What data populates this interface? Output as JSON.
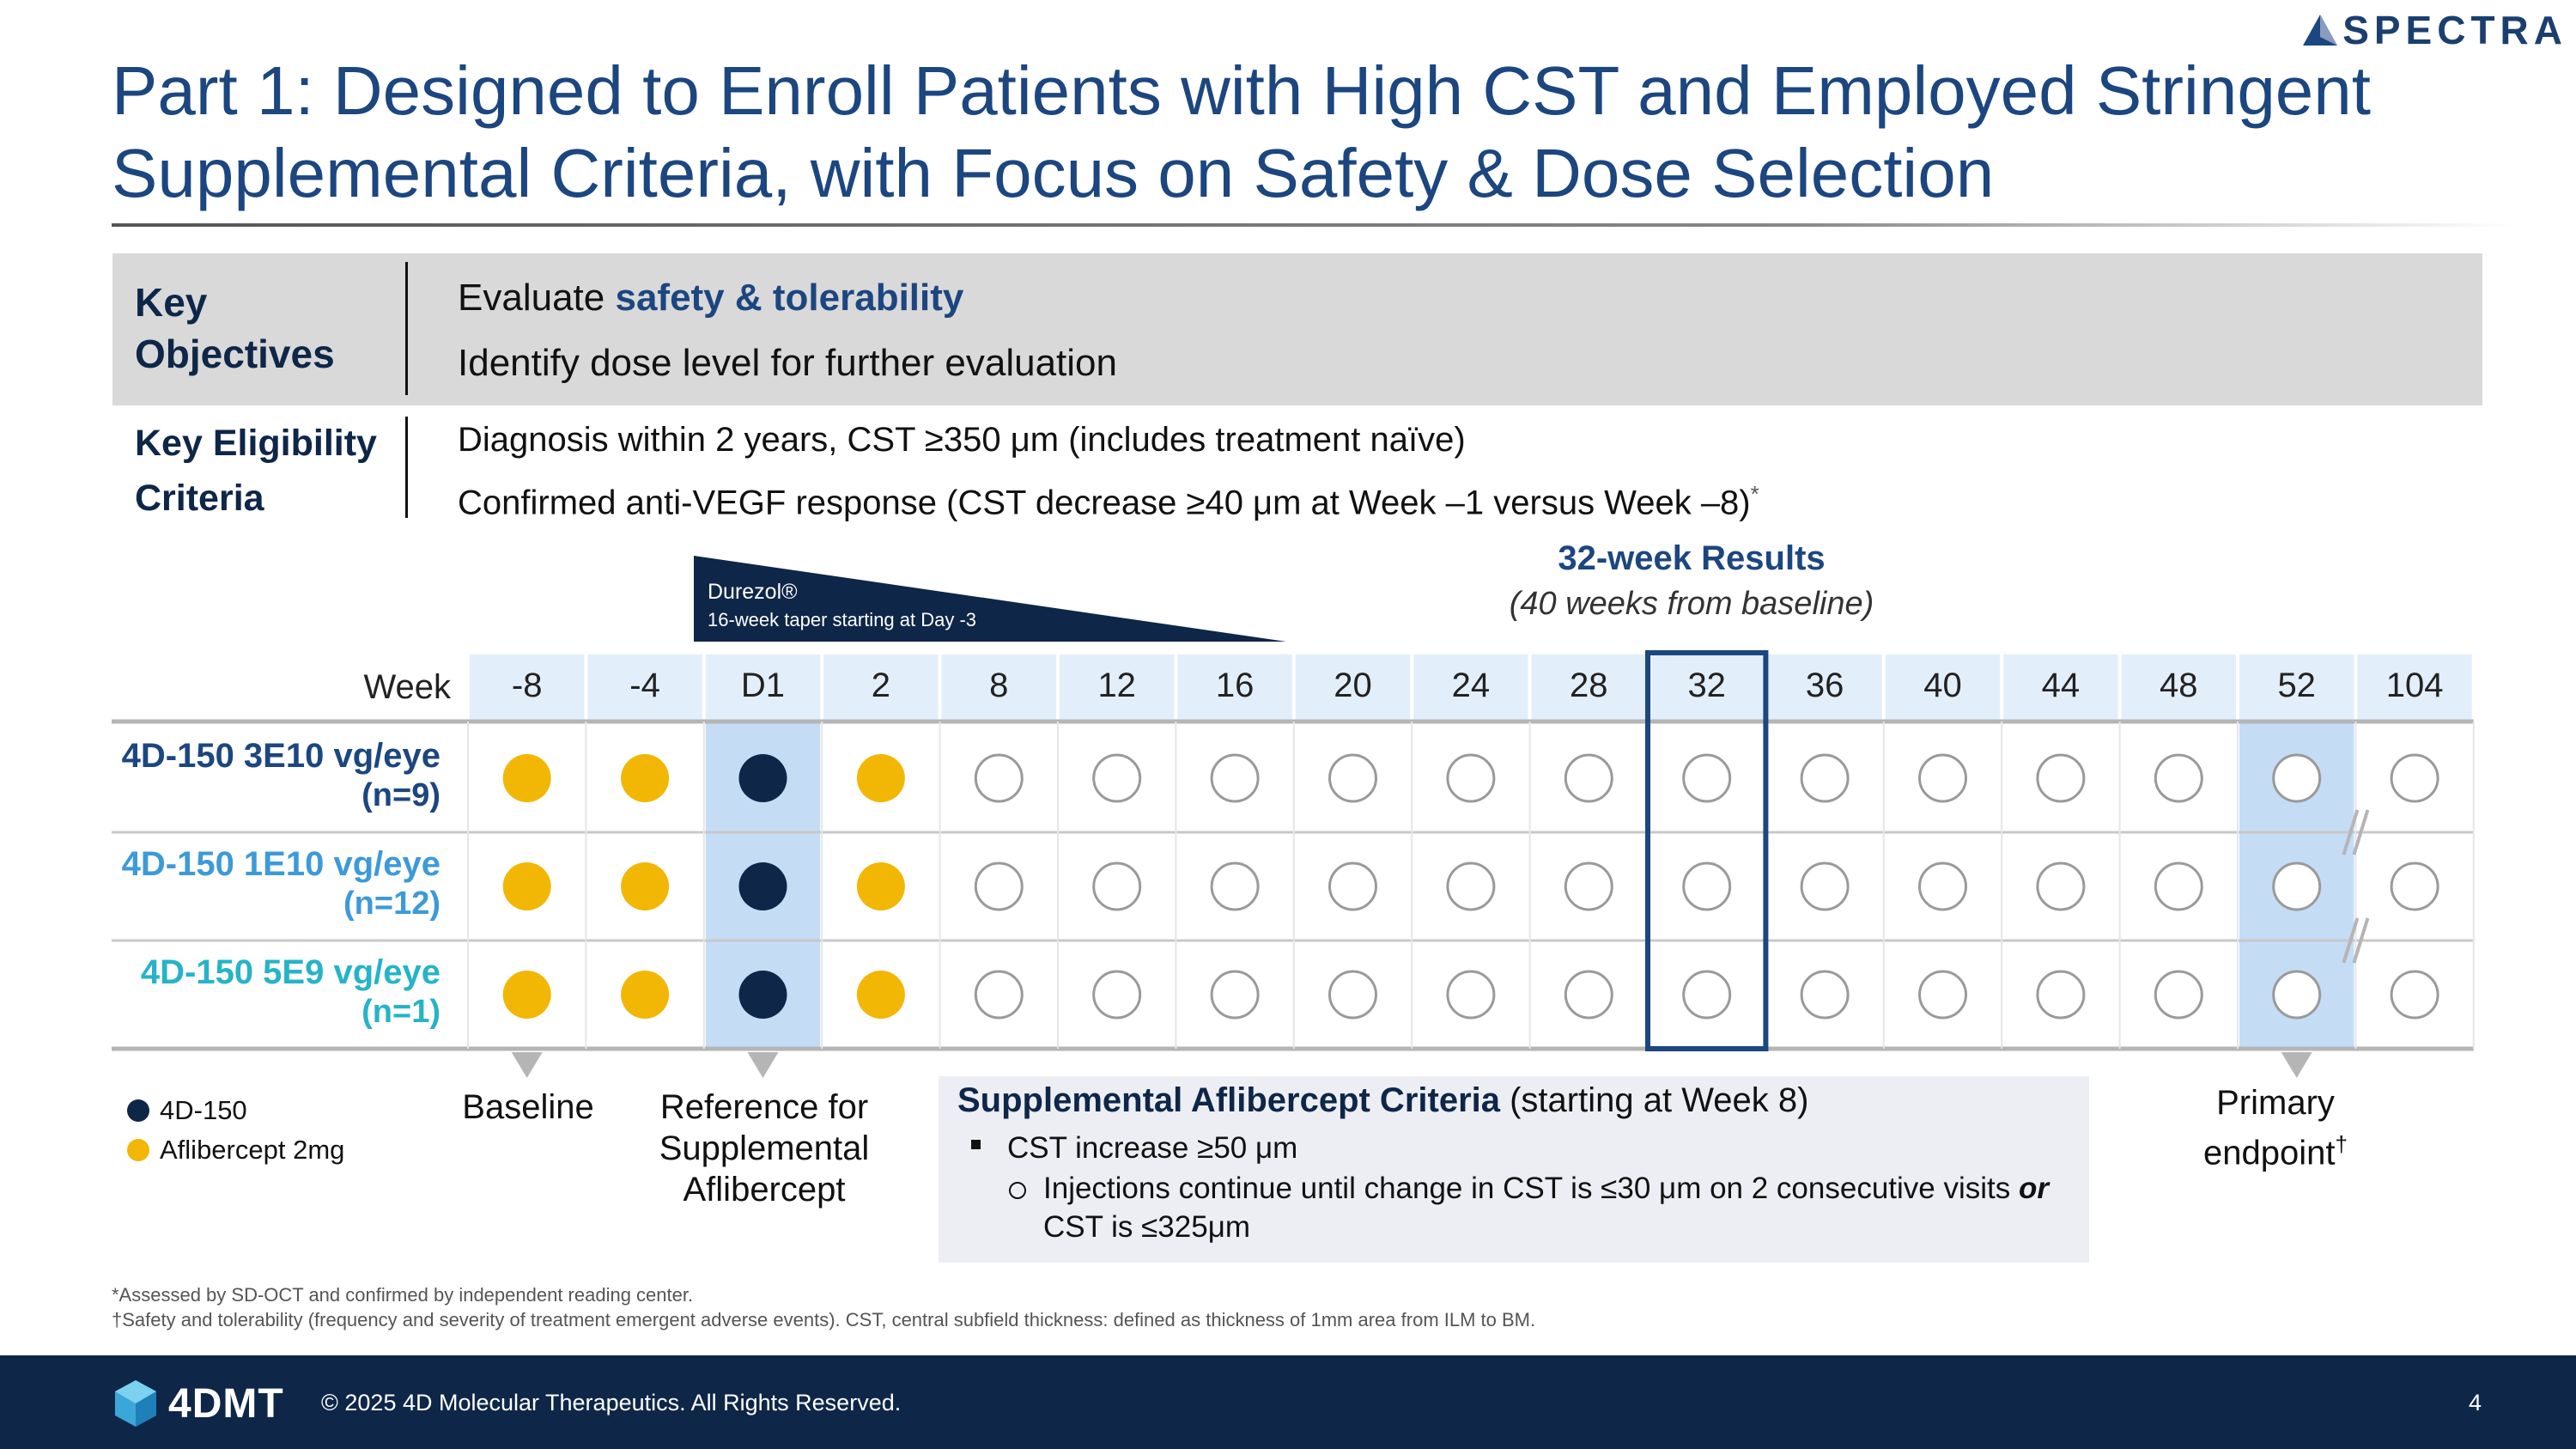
{
  "logo": {
    "text": "SPECTRA"
  },
  "title": "Part 1:  Designed to Enroll Patients with High CST and Employed Stringent Supplemental Criteria, with Focus on Safety & Dose Selection",
  "objectives": {
    "label_line1": "Key",
    "label_line2": "Objectives",
    "line1_prefix": "Evaluate ",
    "line1_bold": "safety & tolerability",
    "line2": "Identify dose level for further evaluation"
  },
  "eligibility": {
    "label_line1": "Key Eligibility",
    "label_line2": "Criteria",
    "line1": "Diagnosis within 2 years, CST ≥350 μm (includes treatment naïve)",
    "line2": "Confirmed anti-VEGF response (CST decrease ≥40 μm at Week –1 versus Week –8)",
    "line2_mark": "*"
  },
  "durezol": {
    "name": "Durezol®",
    "note": "16-week taper starting at Day -3"
  },
  "results": {
    "title": "32-week Results",
    "subtitle": "(40 weeks from baseline)"
  },
  "chart_data": {
    "type": "table",
    "week_header": "Week",
    "weeks": [
      "-8",
      "-4",
      "D1",
      "2",
      "8",
      "12",
      "16",
      "20",
      "24",
      "28",
      "32",
      "36",
      "40",
      "44",
      "48",
      "52",
      "104"
    ],
    "rows": [
      {
        "label": "4D-150 3E10 vg/eye",
        "n": "(n=9)",
        "color": "#1c4680",
        "cells": [
          "aflibercept",
          "aflibercept",
          "4d150",
          "aflibercept",
          "visit",
          "visit",
          "visit",
          "visit",
          "visit",
          "visit",
          "visit",
          "visit",
          "visit",
          "visit",
          "visit",
          "visit",
          "visit"
        ]
      },
      {
        "label": "4D-150 1E10 vg/eye",
        "n": "(n=12)",
        "color": "#3d9ad8",
        "cells": [
          "aflibercept",
          "aflibercept",
          "4d150",
          "aflibercept",
          "visit",
          "visit",
          "visit",
          "visit",
          "visit",
          "visit",
          "visit",
          "visit",
          "visit",
          "visit",
          "visit",
          "visit",
          "visit"
        ]
      },
      {
        "label": "4D-150 5E9 vg/eye",
        "n": "(n=1)",
        "color": "#26b3c9",
        "cells": [
          "aflibercept",
          "aflibercept",
          "4d150",
          "aflibercept",
          "visit",
          "visit",
          "visit",
          "visit",
          "visit",
          "visit",
          "visit",
          "visit",
          "visit",
          "visit",
          "visit",
          "visit",
          "visit"
        ]
      }
    ],
    "highlight_week": "32",
    "shaded_weeks": [
      "D1",
      "52"
    ],
    "axis_break_between": [
      "52",
      "104"
    ],
    "legend": [
      {
        "label": "4D-150",
        "color": "#0e2648"
      },
      {
        "label": "Aflibercept 2mg",
        "color": "#f2b705"
      }
    ],
    "colors": {
      "visit_outline": "#9a9a9a",
      "shade": "#c5dcf5",
      "header_bg": "#e3eefb",
      "highlight_border": "#1c4680"
    }
  },
  "annotations": {
    "baseline": "Baseline",
    "reference": "Reference for Supplemental Aflibercept",
    "primary": "Primary endpoint",
    "primary_mark": "†"
  },
  "supplemental": {
    "title_bold": "Supplemental Aflibercept Criteria",
    "title_rest": " (starting at Week 8)",
    "bullet1": "CST increase ≥50 μm",
    "bullet2_a": "Injections continue until change in CST is ≤30 μm on 2 consecutive visits ",
    "bullet2_or": "or",
    "bullet2_b": " CST is ≤325μm"
  },
  "footnotes": [
    "*Assessed by SD-OCT and confirmed by independent reading center.",
    "†Safety and tolerability (frequency and severity of treatment emergent adverse events). CST, central subfield thickness: defined as thickness of 1mm area from ILM to BM."
  ],
  "footer": {
    "brand": "4DMT",
    "copyright": "© 2025 4D Molecular Therapeutics. All Rights Reserved.",
    "page": "4"
  }
}
